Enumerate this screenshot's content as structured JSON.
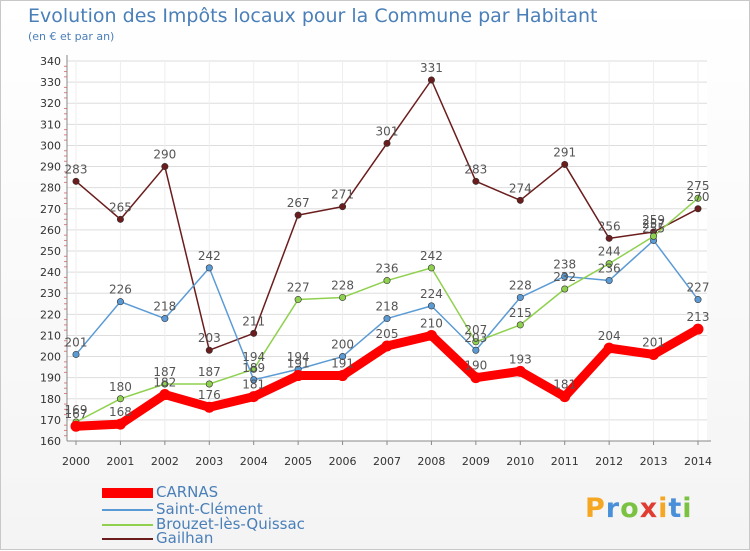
{
  "header": {
    "title": "Evolution des Impôts locaux pour la Commune par Habitant",
    "subtitle": "(en € et par an)"
  },
  "brand": {
    "letters": [
      "P",
      "r",
      "o",
      "x",
      "i",
      "t",
      "i"
    ],
    "colors": [
      "#f5a623",
      "#4a90d9",
      "#7cc242",
      "#e03c31",
      "#f5a623",
      "#4a90d9",
      "#7cc242"
    ]
  },
  "chart_data": {
    "type": "line",
    "title": "Evolution des Impôts locaux pour la Commune par Habitant",
    "subtitle": "(en € et par an)",
    "xlabel": "",
    "ylabel": "",
    "x": [
      "2000",
      "2001",
      "2002",
      "2003",
      "2004",
      "2005",
      "2006",
      "2007",
      "2008",
      "2009",
      "2010",
      "2011",
      "2012",
      "2013",
      "2014"
    ],
    "ylim": [
      160,
      340
    ],
    "yticks": [
      160,
      170,
      180,
      190,
      200,
      210,
      220,
      230,
      240,
      250,
      260,
      270,
      280,
      290,
      300,
      310,
      320,
      330,
      340
    ],
    "grid": true,
    "legend_position": "bottom-left",
    "series": [
      {
        "name": "Gailhan",
        "color": "#6b1c1c",
        "values": [
          283,
          265,
          290,
          203,
          211,
          267,
          271,
          301,
          331,
          283,
          274,
          291,
          256,
          259,
          270
        ]
      },
      {
        "name": "Saint-Clément",
        "color": "#5b9bd5",
        "values": [
          201,
          226,
          218,
          242,
          189,
          194,
          200,
          218,
          224,
          203,
          228,
          238,
          236,
          255,
          227
        ]
      },
      {
        "name": "Brouzet-lès-Quissac",
        "color": "#8fd14f",
        "values": [
          169,
          180,
          187,
          187,
          194,
          227,
          228,
          236,
          242,
          207,
          215,
          232,
          244,
          257,
          275
        ]
      },
      {
        "name": "CARNAS",
        "color": "#ff0000",
        "values": [
          167,
          168,
          182,
          176,
          181,
          191,
          191,
          205,
          210,
          190,
          193,
          181,
          204,
          201,
          213
        ]
      }
    ],
    "legend": [
      "CARNAS",
      "Saint-Clément",
      "Brouzet-lès-Quissac",
      "Gailhan"
    ]
  }
}
